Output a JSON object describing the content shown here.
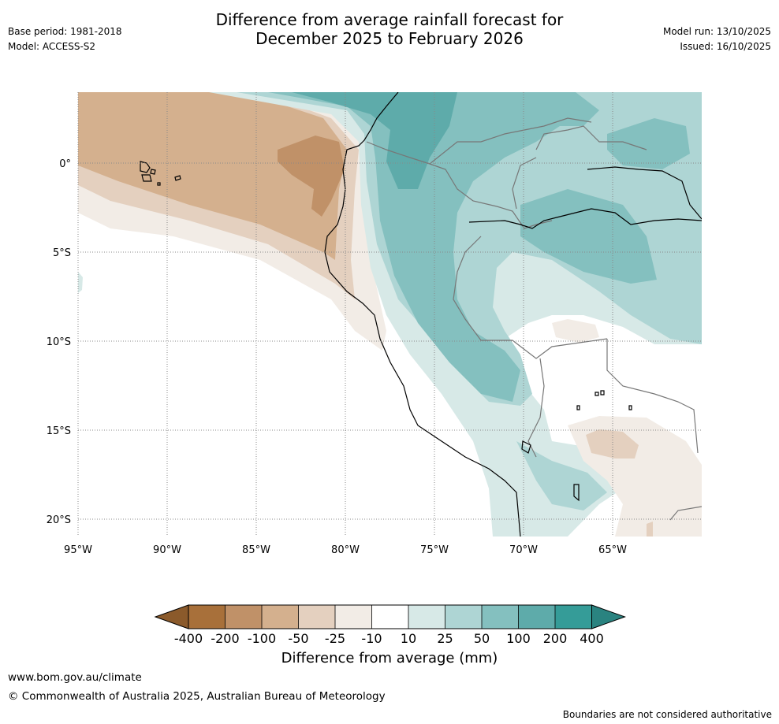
{
  "header": {
    "title_line1": "Difference from average rainfall forecast for",
    "title_line2": "December 2025 to February 2026",
    "base_period": "Base period: 1981-2018",
    "model": "Model: ACCESS-S2",
    "model_run": "Model run: 13/10/2025",
    "issued": "Issued: 16/10/2025"
  },
  "map": {
    "lat_labels": [
      "0°",
      "5°S",
      "10°S",
      "15°S",
      "20°S"
    ],
    "lon_labels": [
      "95°W",
      "90°W",
      "85°W",
      "80°W",
      "75°W",
      "70°W",
      "65°W"
    ]
  },
  "colorbar": {
    "labels": [
      "-400",
      "-200",
      "-100",
      "-50",
      "-25",
      "-10",
      "10",
      "25",
      "50",
      "100",
      "200",
      "400"
    ],
    "colors": [
      "#a8703a",
      "#c09168",
      "#d4b08e",
      "#e4d0bf",
      "#f2ece6",
      "#ffffff",
      "#d7e9e7",
      "#aed5d4",
      "#84c0bf",
      "#5eabaa",
      "#359c98"
    ],
    "under_color": "#8b5a2b",
    "over_color": "#2a8380",
    "title": "Difference from average (mm)"
  },
  "footer": {
    "website": "www.bom.gov.au/climate",
    "copyright": "© Commonwealth of Australia 2025, Australian Bureau of Meteorology",
    "disclaimer": "Boundaries are not considered authoritative"
  }
}
